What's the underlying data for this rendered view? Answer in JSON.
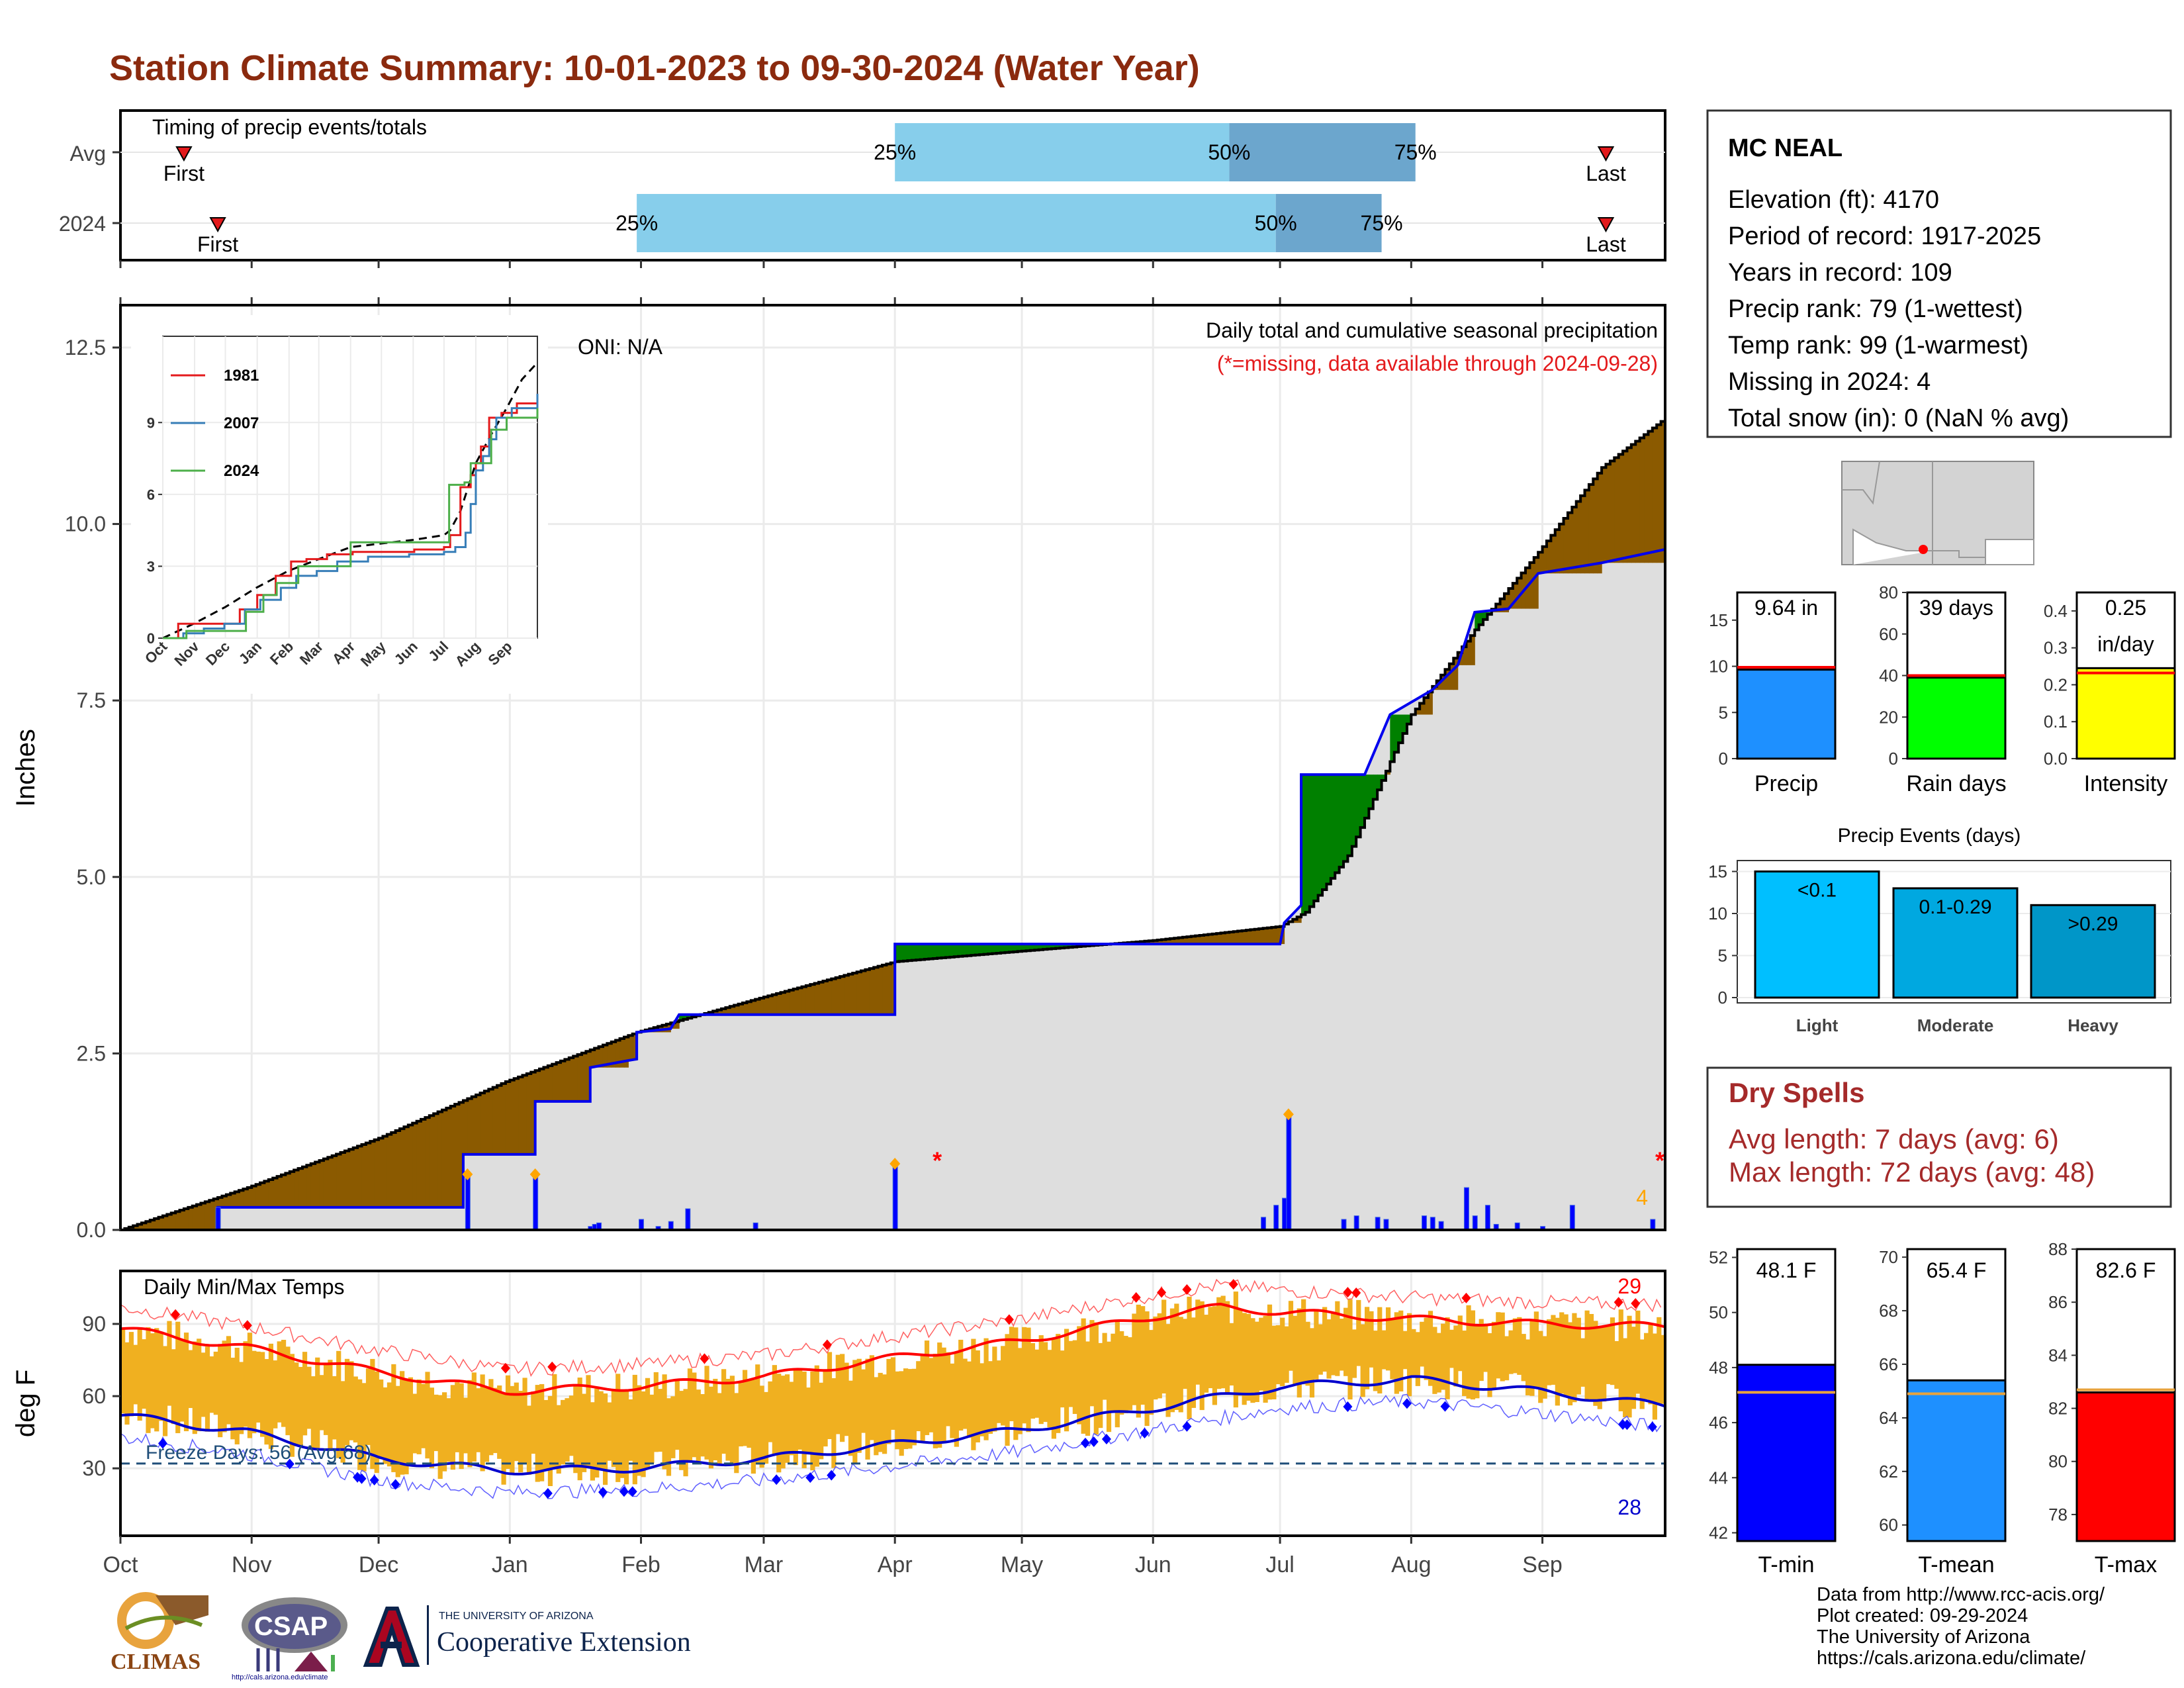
{
  "title": "Station Climate Summary: 10-01-2023 to 09-30-2024 (Water Year)",
  "timing_panel": {
    "label": "Timing of precip events/totals",
    "rows": [
      {
        "name": "Avg",
        "first_label": "First",
        "last_label": "Last",
        "first_day": 15,
        "last_day": 351,
        "p25": 183,
        "p50": 262,
        "p75": 306
      },
      {
        "name": "2024",
        "first_label": "First",
        "last_label": "Last",
        "first_day": 23,
        "last_day": 351,
        "p25": 122,
        "p50": 273,
        "p75": 298
      }
    ],
    "pct_labels": [
      "25%",
      "50%",
      "75%"
    ]
  },
  "precip_panel": {
    "ylabel": "Inches",
    "yticks": [
      "0.0",
      "2.5",
      "5.0",
      "7.5",
      "10.0",
      "12.5"
    ],
    "oni": "ONI: N/A",
    "subtitle": "Daily total and cumulative seasonal precipitation",
    "missing_note": "(*=missing, data available through 2024-09-28)",
    "missing_count": "4",
    "chart_data": {
      "type": "area",
      "x_unit": "day of water year",
      "avg_cumulative": [
        [
          0,
          0
        ],
        [
          30,
          0.6
        ],
        [
          61,
          1.3
        ],
        [
          91,
          2.1
        ],
        [
          122,
          2.8
        ],
        [
          152,
          3.3
        ],
        [
          183,
          3.8
        ],
        [
          213,
          3.95
        ],
        [
          244,
          4.1
        ],
        [
          274,
          4.3
        ],
        [
          280,
          4.5
        ],
        [
          290,
          5.3
        ],
        [
          305,
          7.3
        ],
        [
          320,
          8.5
        ],
        [
          335,
          9.6
        ],
        [
          350,
          10.8
        ],
        [
          365,
          11.5
        ]
      ],
      "cum_2024": [
        [
          0,
          0
        ],
        [
          23,
          0
        ],
        [
          23,
          0.32
        ],
        [
          81,
          0.32
        ],
        [
          81,
          1.07
        ],
        [
          98,
          1.07
        ],
        [
          98,
          1.82
        ],
        [
          111,
          1.82
        ],
        [
          111,
          2.3
        ],
        [
          120,
          2.4
        ],
        [
          122,
          2.42
        ],
        [
          122,
          2.8
        ],
        [
          130,
          2.85
        ],
        [
          132,
          3.05
        ],
        [
          152,
          3.05
        ],
        [
          183,
          3.05
        ],
        [
          183,
          4.05
        ],
        [
          213,
          4.05
        ],
        [
          244,
          4.05
        ],
        [
          274,
          4.05
        ],
        [
          275,
          4.35
        ],
        [
          279,
          4.6
        ],
        [
          279,
          6.45
        ],
        [
          294,
          6.45
        ],
        [
          300,
          7.3
        ],
        [
          310,
          7.65
        ],
        [
          316,
          8.0
        ],
        [
          320,
          8.75
        ],
        [
          328,
          8.8
        ],
        [
          335,
          9.3
        ],
        [
          350,
          9.45
        ],
        [
          365,
          9.64
        ]
      ],
      "daily_bars": [
        [
          23,
          0.32
        ],
        [
          82,
          0.75
        ],
        [
          98,
          0.75
        ],
        [
          111,
          0.05
        ],
        [
          112,
          0.08
        ],
        [
          113,
          0.1
        ],
        [
          123,
          0.15
        ],
        [
          127,
          0.05
        ],
        [
          130,
          0.12
        ],
        [
          134,
          0.3
        ],
        [
          150,
          0.1
        ],
        [
          183,
          0.9
        ],
        [
          270,
          0.18
        ],
        [
          273,
          0.35
        ],
        [
          275,
          0.45
        ],
        [
          276,
          1.6
        ],
        [
          289,
          0.15
        ],
        [
          292,
          0.2
        ],
        [
          297,
          0.18
        ],
        [
          299,
          0.15
        ],
        [
          308,
          0.2
        ],
        [
          310,
          0.18
        ],
        [
          312,
          0.12
        ],
        [
          318,
          0.6
        ],
        [
          320,
          0.2
        ],
        [
          323,
          0.35
        ],
        [
          325,
          0.08
        ],
        [
          330,
          0.1
        ],
        [
          336,
          0.05
        ],
        [
          343,
          0.35
        ],
        [
          362,
          0.15
        ]
      ],
      "missing_days": [
        193,
        364
      ]
    }
  },
  "inset": {
    "legend": [
      "1981",
      "2007",
      "2024"
    ],
    "yticks": [
      "0",
      "3",
      "6",
      "9"
    ],
    "months": [
      "Oct",
      "Nov",
      "Dec",
      "Jan",
      "Feb",
      "Mar",
      "Apr",
      "May",
      "Jun",
      "Jul",
      "Aug",
      "Sep"
    ],
    "colors": {
      "1981": "#E41A1C",
      "2007": "#377EB8",
      "2024": "#4DAF4A"
    }
  },
  "temp_panel": {
    "label": "Daily Min/Max Temps",
    "ylabel": "deg F",
    "yticks": [
      "30",
      "60",
      "90"
    ],
    "freeze_label": "Freeze Days: 56 (Avg:68)",
    "hot_count": "29",
    "cold_count": "28",
    "months": [
      "Oct",
      "Nov",
      "Dec",
      "Jan",
      "Feb",
      "Mar",
      "Apr",
      "May",
      "Jun",
      "Jul",
      "Aug",
      "Sep"
    ],
    "chart_data": {
      "type": "line",
      "avg_max_curve": [
        [
          0,
          88
        ],
        [
          30,
          80
        ],
        [
          61,
          70
        ],
        [
          91,
          62
        ],
        [
          122,
          64
        ],
        [
          152,
          68
        ],
        [
          183,
          76
        ],
        [
          213,
          83
        ],
        [
          244,
          93
        ],
        [
          260,
          97
        ],
        [
          274,
          95
        ],
        [
          305,
          92
        ],
        [
          335,
          90
        ],
        [
          365,
          89
        ]
      ],
      "avg_min_curve": [
        [
          0,
          52
        ],
        [
          30,
          45
        ],
        [
          61,
          34
        ],
        [
          91,
          29
        ],
        [
          122,
          30
        ],
        [
          152,
          34
        ],
        [
          183,
          40
        ],
        [
          213,
          46
        ],
        [
          244,
          55
        ],
        [
          274,
          64
        ],
        [
          305,
          67
        ],
        [
          335,
          62
        ],
        [
          365,
          56
        ]
      ],
      "freeze_line": 32
    }
  },
  "station": {
    "name": "MC NEAL",
    "lines": [
      "Elevation (ft): 4170",
      "Period of record: 1917-2025",
      "Years in record: 109",
      "Precip rank: 79 (1-wettest)",
      "Temp rank: 99 (1-warmest)",
      "Missing in 2024: 4",
      "Total snow (in): 0 (NaN % avg)"
    ]
  },
  "mini_bars": [
    {
      "label": "Precip",
      "value_text": "9.64 in",
      "value": 9.64,
      "avg": 9.9,
      "ymax": 18,
      "yticks": [
        "0",
        "5",
        "10",
        "15"
      ],
      "ytick_vals": [
        0,
        5,
        10,
        15
      ],
      "color": "#1E90FF"
    },
    {
      "label": "Rain days",
      "value_text": "39 days",
      "value": 39,
      "avg": 40,
      "ymax": 80,
      "yticks": [
        "0",
        "20",
        "40",
        "60",
        "80"
      ],
      "ytick_vals": [
        0,
        20,
        40,
        60,
        80
      ],
      "color": "#00FF00"
    },
    {
      "label": "Intensity",
      "value_text": "0.25",
      "value_text2": "in/day",
      "value": 0.245,
      "avg": 0.232,
      "ymax": 0.45,
      "yticks": [
        "0.0",
        "0.1",
        "0.2",
        "0.3",
        "0.4"
      ],
      "ytick_vals": [
        0,
        0.1,
        0.2,
        0.3,
        0.4
      ],
      "color": "#FFFF00"
    }
  ],
  "precip_events": {
    "title": "Precip Events (days)",
    "categories": [
      "Light",
      "Moderate",
      "Heavy"
    ],
    "labels": [
      "<0.1",
      "0.1-0.29",
      ">0.29"
    ],
    "values": [
      15,
      13,
      11
    ],
    "colors": [
      "#00BFFF",
      "#00A8E0",
      "#0096C8"
    ],
    "yticks": [
      "0",
      "5",
      "10",
      "15"
    ]
  },
  "dry_spells": {
    "title": "Dry Spells",
    "avg_line": "Avg length: 7 days (avg: 6)",
    "max_line": "Max length: 72 days (avg: 48)"
  },
  "temp_bars": [
    {
      "label": "T-min",
      "value_text": "48.1 F",
      "value": 48.1,
      "avg": 47.1,
      "ymin": 41.7,
      "ymax": 52.3,
      "yticks": [
        "42",
        "44",
        "46",
        "48",
        "50",
        "52"
      ],
      "ytick_vals": [
        42,
        44,
        46,
        48,
        50,
        52
      ],
      "color": "#0000FF"
    },
    {
      "label": "T-mean",
      "value_text": "65.4 F",
      "value": 65.4,
      "avg": 64.9,
      "ymin": 59.4,
      "ymax": 70.3,
      "yticks": [
        "60",
        "62",
        "64",
        "66",
        "68",
        "70"
      ],
      "ytick_vals": [
        60,
        62,
        64,
        66,
        68,
        70
      ],
      "color": "#1E90FF"
    },
    {
      "label": "T-max",
      "value_text": "82.6 F",
      "value": 82.6,
      "avg": 82.7,
      "ymin": 77.0,
      "ymax": 88.0,
      "yticks": [
        "78",
        "80",
        "82",
        "84",
        "86",
        "88"
      ],
      "ytick_vals": [
        78,
        80,
        82,
        84,
        86,
        88
      ],
      "color": "#FF0000"
    }
  ],
  "footer": {
    "lines": [
      "Data from http://www.rcc-acis.org/",
      "Plot created: 09-29-2024",
      "The University of Arizona",
      "https://cals.arizona.edu/climate/"
    ]
  },
  "logos": {
    "climas": "CLIMAS",
    "csap": "CSAP",
    "csap_url": "http://cals.arizona.edu/climate",
    "ua_small": "THE UNIVERSITY OF ARIZONA",
    "ua_big": "Cooperative Extension"
  }
}
